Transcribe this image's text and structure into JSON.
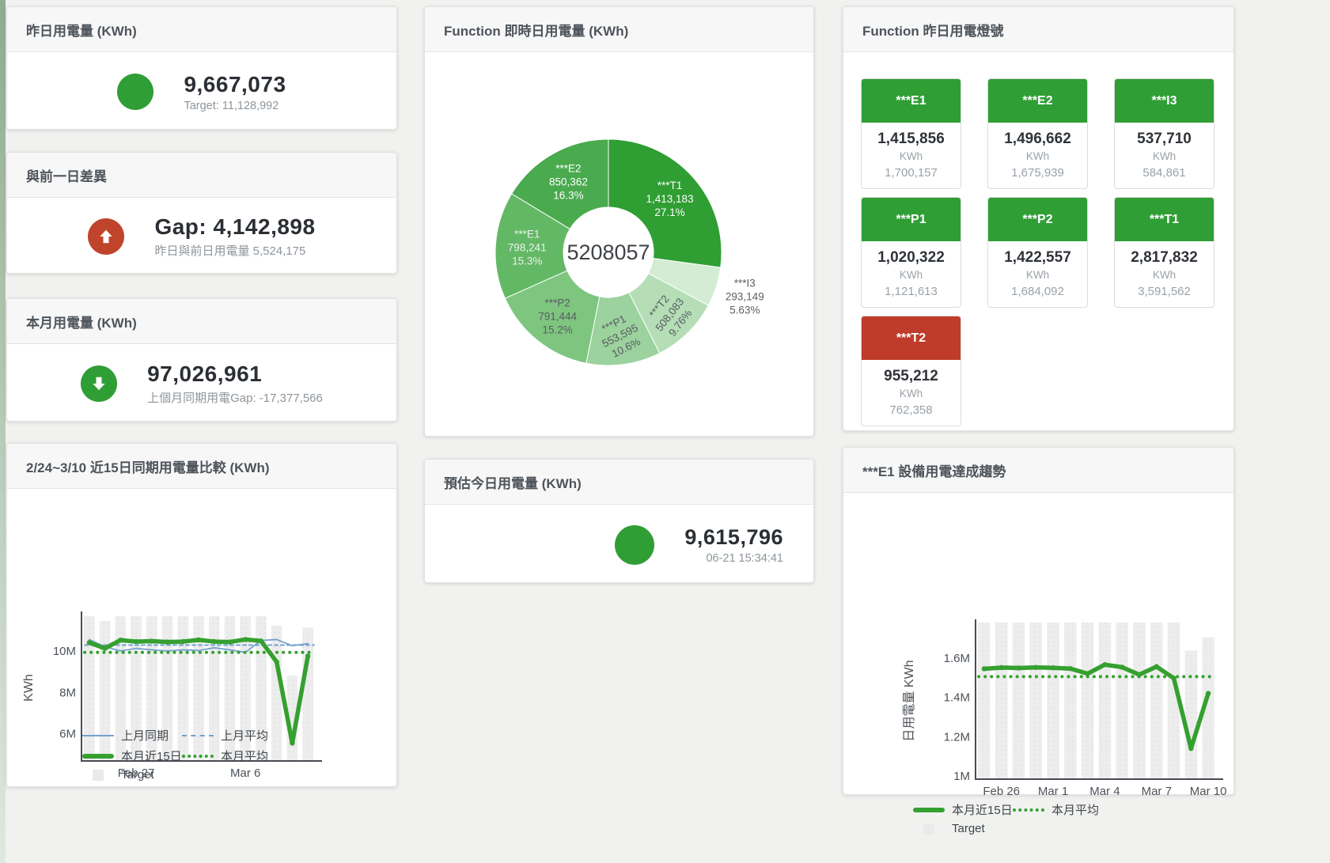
{
  "page": {
    "background": "#f1f2f0",
    "accent_green": "#2f9e35",
    "accent_red": "#c0432c"
  },
  "cards": {
    "yesterday": {
      "title": "昨日用電量 (KWh)",
      "value": "9,667,073",
      "sub": "Target: 11,128,992"
    },
    "gap": {
      "title": "與前一日差異",
      "value": "Gap: 4,142,898",
      "sub": "昨日與前日用電量 5,524,175"
    },
    "month": {
      "title": "本月用電量 (KWh)",
      "value": "97,026,961",
      "sub": "上個月同期用電Gap: -17,377,566"
    },
    "forecast": {
      "title": "預估今日用電量 (KWh)",
      "value": "9,615,796",
      "sub": "06-21 15:34:41"
    }
  },
  "lights": {
    "title": "Function 昨日用電燈號",
    "tiles": [
      {
        "id": "e1",
        "name": "***E1",
        "value": "1,415,856",
        "unit": "KWh",
        "baseline": "1,700,157",
        "status": "ok"
      },
      {
        "id": "e2",
        "name": "***E2",
        "value": "1,496,662",
        "unit": "KWh",
        "baseline": "1,675,939",
        "status": "ok"
      },
      {
        "id": "i3",
        "name": "***I3",
        "value": "537,710",
        "unit": "KWh",
        "baseline": "584,861",
        "status": "ok"
      },
      {
        "id": "p1",
        "name": "***P1",
        "value": "1,020,322",
        "unit": "KWh",
        "baseline": "1,121,613",
        "status": "ok"
      },
      {
        "id": "p2",
        "name": "***P2",
        "value": "1,422,557",
        "unit": "KWh",
        "baseline": "1,684,092",
        "status": "ok"
      },
      {
        "id": "t1",
        "name": "***T1",
        "value": "2,817,832",
        "unit": "KWh",
        "baseline": "3,591,562",
        "status": "ok"
      },
      {
        "id": "t2",
        "name": "***T2",
        "value": "955,212",
        "unit": "KWh",
        "baseline": "762,358",
        "status": "alert"
      }
    ]
  },
  "chart_data": [
    {
      "type": "pie",
      "title": "Function 即時日用電量 (KWh)",
      "center_total": "5208057",
      "legend_position": "none",
      "slices": [
        {
          "name": "***T1",
          "value": 1413183,
          "value_label": "1,413,183",
          "percent": "27.1%",
          "color": "#2f9e33"
        },
        {
          "name": "***I3",
          "value": 293149,
          "value_label": "293,149",
          "percent": "5.63%",
          "color": "#d3ecd3"
        },
        {
          "name": "***T2",
          "value": 508083,
          "value_label": "508,083",
          "percent": "9.76%",
          "color": "#b5deb6"
        },
        {
          "name": "***P1",
          "value": 553595,
          "value_label": "553,595",
          "percent": "10.6%",
          "color": "#9bd29d"
        },
        {
          "name": "***P2",
          "value": 791444,
          "value_label": "791,444",
          "percent": "15.2%",
          "color": "#7ec680"
        },
        {
          "name": "***E1",
          "value": 798241,
          "value_label": "798,241",
          "percent": "15.3%",
          "color": "#63b866"
        },
        {
          "name": "***E2",
          "value": 850362,
          "value_label": "850,362",
          "percent": "16.3%",
          "color": "#49aa4e"
        }
      ]
    },
    {
      "type": "line",
      "title": "2/24~3/10 近15日同期用電量比較 (KWh)",
      "ylabel": "KWh",
      "ylim": [
        4.69,
        11.75
      ],
      "yticks": [
        {
          "v": 6,
          "label": "6M"
        },
        {
          "v": 8,
          "label": "8M"
        },
        {
          "v": 10,
          "label": "10M"
        }
      ],
      "xticks": [
        {
          "i": 3,
          "label": "Feb 27"
        },
        {
          "i": 10,
          "label": "Mar 6"
        }
      ],
      "grid": false,
      "target_bars": [
        11.68,
        11.45,
        11.68,
        11.68,
        11.68,
        11.68,
        11.68,
        11.68,
        11.68,
        11.68,
        11.68,
        11.68,
        11.22,
        8.8,
        11.12
      ],
      "series": [
        {
          "name": "上月同期",
          "style": "blue-solid",
          "values": [
            10.55,
            10.2,
            10.0,
            10.12,
            10.05,
            10.0,
            10.05,
            10.02,
            10.15,
            10.05,
            9.93,
            10.5,
            10.55,
            10.25,
            10.35
          ]
        },
        {
          "name": "上月平均",
          "style": "blue-dashed",
          "avg": 10.28
        },
        {
          "name": "本月近15日",
          "style": "green-thick",
          "values": [
            10.4,
            10.12,
            10.52,
            10.45,
            10.47,
            10.43,
            10.45,
            10.53,
            10.45,
            10.43,
            10.55,
            10.48,
            9.47,
            5.55,
            9.75
          ]
        },
        {
          "name": "本月平均",
          "style": "green-dotted",
          "avg": 9.93
        },
        {
          "name": "Target",
          "style": "target-bar"
        }
      ],
      "legend_rows": [
        [
          "上月同期",
          "上月平均"
        ],
        [
          "本月近15日",
          "本月平均"
        ],
        [
          "Target"
        ]
      ]
    },
    {
      "type": "line",
      "title": "***E1 設備用電達成趨勢",
      "ylabel": "日用電量 KWh",
      "ylim": [
        0.984,
        1.78
      ],
      "yticks": [
        {
          "v": 1,
          "label": "1M"
        },
        {
          "v": 1.2,
          "label": "1.2M"
        },
        {
          "v": 1.4,
          "label": "1.4M"
        },
        {
          "v": 1.6,
          "label": "1.6M"
        }
      ],
      "xticks": [
        {
          "i": 1,
          "label": "Feb 26"
        },
        {
          "i": 4,
          "label": "Mar 1"
        },
        {
          "i": 7,
          "label": "Mar 4"
        },
        {
          "i": 10,
          "label": "Mar 7"
        },
        {
          "i": 13,
          "label": "Mar 10"
        }
      ],
      "grid": false,
      "target_bars": [
        1.78,
        1.78,
        1.78,
        1.78,
        1.78,
        1.78,
        1.78,
        1.78,
        1.78,
        1.78,
        1.78,
        1.78,
        1.637,
        1.705
      ],
      "series": [
        {
          "name": "本月近15日",
          "style": "green-thick",
          "values": [
            1.545,
            1.551,
            1.549,
            1.552,
            1.55,
            1.546,
            1.52,
            1.566,
            1.553,
            1.515,
            1.556,
            1.497,
            1.14,
            1.42
          ]
        },
        {
          "name": "本月平均",
          "style": "green-dotted",
          "avg": 1.505
        },
        {
          "name": "Target",
          "style": "target-bar"
        }
      ],
      "legend_rows": [
        [
          "本月近15日",
          "本月平均"
        ],
        [
          "Target"
        ]
      ]
    }
  ]
}
